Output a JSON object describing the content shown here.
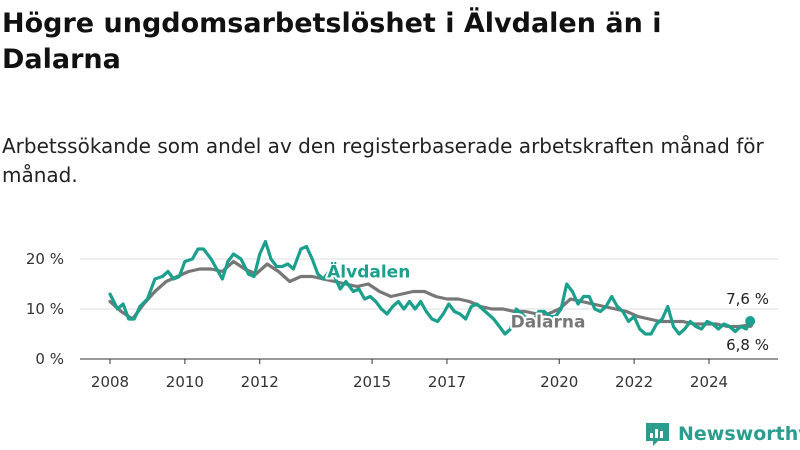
{
  "title": "Högre ungdomsarbetslöshet i Älvdalen än i Dalarna",
  "subtitle": "Arbetssökande som andel av den registerbaserade arbetskraften månad för månad.",
  "brand": {
    "name": "Newsworthy",
    "logo_icon": "newsworthy-logo-icon"
  },
  "chart_data": {
    "type": "line",
    "title": "",
    "xlabel": "",
    "ylabel": "",
    "ylim": [
      0,
      22
    ],
    "xlim": [
      2007.2,
      2025.6
    ],
    "grid": true,
    "y_ticks": [
      {
        "value": 0,
        "label": "0 %"
      },
      {
        "value": 10,
        "label": "10 %"
      },
      {
        "value": 20,
        "label": "20 %"
      }
    ],
    "x_ticks": [
      {
        "value": 2008,
        "label": "2008"
      },
      {
        "value": 2010,
        "label": "2010"
      },
      {
        "value": 2012,
        "label": "2012"
      },
      {
        "value": 2015,
        "label": "2015"
      },
      {
        "value": 2017,
        "label": "2017"
      },
      {
        "value": 2020,
        "label": "2020"
      },
      {
        "value": 2022,
        "label": "2022"
      },
      {
        "value": 2024,
        "label": "2024"
      }
    ],
    "series": [
      {
        "name": "Dalarna",
        "color": "#777777",
        "label_at": [
          2018.7,
          7.5
        ],
        "end_label": "6,8 %",
        "points": [
          [
            2008.0,
            11.5
          ],
          [
            2008.3,
            9.5
          ],
          [
            2008.6,
            8.0
          ],
          [
            2008.9,
            11.0
          ],
          [
            2009.2,
            13.5
          ],
          [
            2009.5,
            15.5
          ],
          [
            2009.8,
            16.5
          ],
          [
            2010.1,
            17.5
          ],
          [
            2010.4,
            18.0
          ],
          [
            2010.7,
            18.0
          ],
          [
            2011.0,
            17.5
          ],
          [
            2011.3,
            19.5
          ],
          [
            2011.6,
            18.0
          ],
          [
            2011.9,
            17.0
          ],
          [
            2012.2,
            19.0
          ],
          [
            2012.5,
            17.5
          ],
          [
            2012.8,
            15.5
          ],
          [
            2013.1,
            16.5
          ],
          [
            2013.4,
            16.5
          ],
          [
            2013.7,
            16.0
          ],
          [
            2014.0,
            15.5
          ],
          [
            2014.3,
            15.0
          ],
          [
            2014.6,
            14.5
          ],
          [
            2014.9,
            15.0
          ],
          [
            2015.2,
            13.5
          ],
          [
            2015.5,
            12.5
          ],
          [
            2015.8,
            13.0
          ],
          [
            2016.1,
            13.5
          ],
          [
            2016.4,
            13.5
          ],
          [
            2016.7,
            12.5
          ],
          [
            2017.0,
            12.0
          ],
          [
            2017.3,
            12.0
          ],
          [
            2017.6,
            11.5
          ],
          [
            2017.9,
            10.5
          ],
          [
            2018.2,
            10.0
          ],
          [
            2018.5,
            10.0
          ],
          [
            2018.8,
            9.5
          ],
          [
            2019.1,
            9.5
          ],
          [
            2019.4,
            9.0
          ],
          [
            2019.7,
            9.0
          ],
          [
            2020.0,
            10.0
          ],
          [
            2020.3,
            12.0
          ],
          [
            2020.6,
            11.5
          ],
          [
            2020.9,
            11.0
          ],
          [
            2021.2,
            10.5
          ],
          [
            2021.5,
            10.0
          ],
          [
            2021.8,
            9.5
          ],
          [
            2022.1,
            8.5
          ],
          [
            2022.4,
            8.0
          ],
          [
            2022.7,
            7.5
          ],
          [
            2023.0,
            7.5
          ],
          [
            2023.3,
            7.5
          ],
          [
            2023.6,
            7.0
          ],
          [
            2023.9,
            7.0
          ],
          [
            2024.2,
            7.0
          ],
          [
            2024.5,
            6.5
          ],
          [
            2024.8,
            6.5
          ],
          [
            2025.1,
            6.8
          ]
        ]
      },
      {
        "name": "Älvdalen",
        "color": "#1aa08c",
        "label_at": [
          2013.8,
          17.5
        ],
        "end_label": "7,6 %",
        "points": [
          [
            2008.0,
            13.0
          ],
          [
            2008.2,
            10.0
          ],
          [
            2008.35,
            11.0
          ],
          [
            2008.5,
            8.0
          ],
          [
            2008.65,
            8.0
          ],
          [
            2008.8,
            10.5
          ],
          [
            2009.0,
            12.0
          ],
          [
            2009.2,
            16.0
          ],
          [
            2009.4,
            16.5
          ],
          [
            2009.55,
            17.5
          ],
          [
            2009.7,
            16.0
          ],
          [
            2009.85,
            16.5
          ],
          [
            2010.0,
            19.5
          ],
          [
            2010.2,
            20.0
          ],
          [
            2010.35,
            22.0
          ],
          [
            2010.5,
            22.0
          ],
          [
            2010.7,
            20.0
          ],
          [
            2010.85,
            18.0
          ],
          [
            2011.0,
            16.0
          ],
          [
            2011.15,
            19.5
          ],
          [
            2011.3,
            21.0
          ],
          [
            2011.5,
            20.0
          ],
          [
            2011.7,
            17.0
          ],
          [
            2011.85,
            16.5
          ],
          [
            2012.0,
            21.0
          ],
          [
            2012.15,
            23.5
          ],
          [
            2012.3,
            20.0
          ],
          [
            2012.45,
            18.5
          ],
          [
            2012.6,
            18.5
          ],
          [
            2012.75,
            19.0
          ],
          [
            2012.9,
            18.0
          ],
          [
            2013.1,
            22.0
          ],
          [
            2013.25,
            22.5
          ],
          [
            2013.4,
            20.0
          ],
          [
            2013.55,
            17.0
          ],
          [
            2013.7,
            16.0
          ],
          [
            2013.85,
            17.5
          ],
          [
            2014.0,
            16.5
          ],
          [
            2014.15,
            14.0
          ],
          [
            2014.3,
            15.5
          ],
          [
            2014.5,
            13.5
          ],
          [
            2014.65,
            14.0
          ],
          [
            2014.8,
            12.0
          ],
          [
            2014.95,
            12.5
          ],
          [
            2015.1,
            11.5
          ],
          [
            2015.25,
            10.0
          ],
          [
            2015.4,
            9.0
          ],
          [
            2015.55,
            10.5
          ],
          [
            2015.7,
            11.5
          ],
          [
            2015.85,
            10.0
          ],
          [
            2016.0,
            11.5
          ],
          [
            2016.15,
            10.0
          ],
          [
            2016.3,
            11.5
          ],
          [
            2016.45,
            9.5
          ],
          [
            2016.6,
            8.0
          ],
          [
            2016.75,
            7.5
          ],
          [
            2016.9,
            9.0
          ],
          [
            2017.05,
            11.0
          ],
          [
            2017.2,
            9.5
          ],
          [
            2017.35,
            9.0
          ],
          [
            2017.5,
            8.0
          ],
          [
            2017.65,
            10.5
          ],
          [
            2017.8,
            11.0
          ],
          [
            2017.95,
            10.0
          ],
          [
            2018.1,
            9.0
          ],
          [
            2018.25,
            8.0
          ],
          [
            2018.4,
            6.5
          ],
          [
            2018.55,
            5.0
          ],
          [
            2018.7,
            6.0
          ],
          [
            2018.85,
            10.0
          ],
          [
            2019.0,
            9.0
          ],
          [
            2019.15,
            8.0
          ],
          [
            2019.3,
            7.5
          ],
          [
            2019.45,
            9.5
          ],
          [
            2019.6,
            9.5
          ],
          [
            2019.75,
            8.5
          ],
          [
            2019.9,
            8.5
          ],
          [
            2020.05,
            10.0
          ],
          [
            2020.2,
            15.0
          ],
          [
            2020.35,
            13.5
          ],
          [
            2020.5,
            11.0
          ],
          [
            2020.65,
            12.5
          ],
          [
            2020.8,
            12.5
          ],
          [
            2020.95,
            10.0
          ],
          [
            2021.1,
            9.5
          ],
          [
            2021.25,
            10.5
          ],
          [
            2021.4,
            12.5
          ],
          [
            2021.55,
            10.5
          ],
          [
            2021.7,
            9.5
          ],
          [
            2021.85,
            7.5
          ],
          [
            2022.0,
            8.5
          ],
          [
            2022.15,
            6.0
          ],
          [
            2022.3,
            5.0
          ],
          [
            2022.45,
            5.0
          ],
          [
            2022.6,
            7.0
          ],
          [
            2022.75,
            8.0
          ],
          [
            2022.9,
            10.5
          ],
          [
            2023.05,
            6.5
          ],
          [
            2023.2,
            5.0
          ],
          [
            2023.35,
            6.0
          ],
          [
            2023.5,
            7.5
          ],
          [
            2023.65,
            6.5
          ],
          [
            2023.8,
            6.0
          ],
          [
            2023.95,
            7.5
          ],
          [
            2024.1,
            7.0
          ],
          [
            2024.25,
            6.0
          ],
          [
            2024.4,
            7.0
          ],
          [
            2024.55,
            6.5
          ],
          [
            2024.7,
            5.5
          ],
          [
            2024.85,
            6.5
          ],
          [
            2025.0,
            6.0
          ],
          [
            2025.1,
            7.6
          ]
        ]
      }
    ]
  }
}
